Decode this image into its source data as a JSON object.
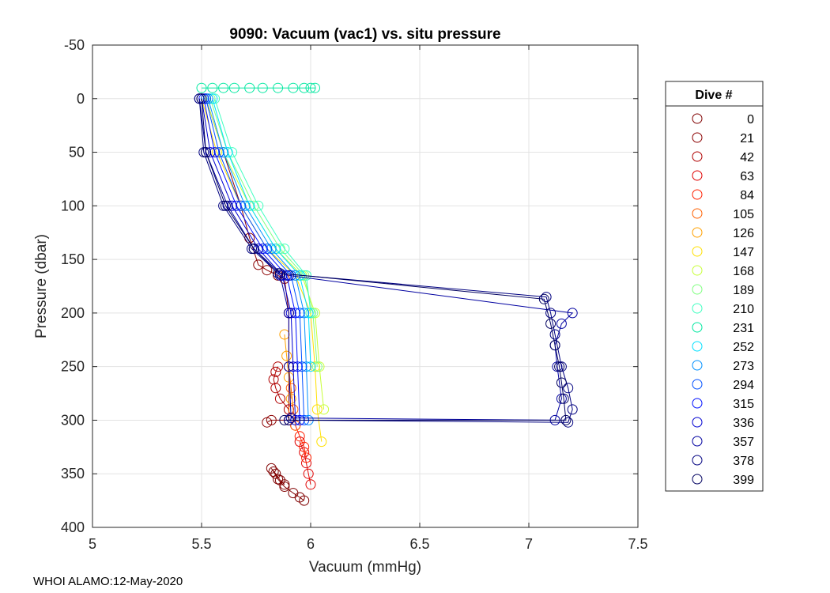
{
  "chart_data": {
    "type": "scatter",
    "title": "9090: Vacuum (vac1) vs. situ pressure",
    "xlabel": "Vacuum (mmHg)",
    "ylabel": "Pressure (dbar)",
    "xlim": [
      5,
      7.5
    ],
    "ylim": [
      -50,
      400
    ],
    "y_reversed": true,
    "grid": true,
    "xticks": [
      5,
      5.5,
      6,
      6.5,
      7,
      7.5
    ],
    "xtick_labels": [
      "5",
      "5.5",
      "6",
      "6.5",
      "7",
      "7.5"
    ],
    "yticks": [
      -50,
      0,
      50,
      100,
      150,
      200,
      250,
      300,
      350,
      400
    ],
    "ytick_labels": [
      "-50",
      "0",
      "50",
      "100",
      "150",
      "200",
      "250",
      "300",
      "350",
      "400"
    ],
    "legend_title": "Dive #",
    "legend_position": "outside-right",
    "colormap": "jet",
    "series": [
      {
        "name": "0",
        "color": "#800000",
        "x": [
          5.97,
          5.95,
          5.92,
          5.88,
          5.85,
          5.83,
          5.82,
          5.84,
          5.86,
          5.88
        ],
        "y": [
          375,
          372,
          368,
          362,
          355,
          348,
          345,
          350,
          356,
          360
        ]
      },
      {
        "name": "21",
        "color": "#8b0000",
        "x": [
          5.52,
          5.6,
          5.68,
          5.72,
          5.76,
          5.8,
          5.85,
          5.88,
          5.9,
          5.9,
          5.9,
          5.82,
          5.8
        ],
        "y": [
          0,
          50,
          100,
          130,
          155,
          160,
          165,
          168,
          200,
          250,
          300,
          300,
          302
        ]
      },
      {
        "name": "42",
        "color": "#b00000",
        "x": [
          5.85,
          5.84,
          5.83,
          5.84,
          5.86,
          5.9
        ],
        "y": [
          250,
          255,
          262,
          270,
          280,
          290
        ]
      },
      {
        "name": "63",
        "color": "#e00000",
        "x": [
          5.95,
          5.97,
          5.98,
          5.99,
          6.0
        ],
        "y": [
          320,
          330,
          340,
          350,
          360
        ]
      },
      {
        "name": "84",
        "color": "#ff2000",
        "x": [
          5.93,
          5.95,
          5.97,
          5.98
        ],
        "y": [
          305,
          315,
          325,
          335
        ]
      },
      {
        "name": "105",
        "color": "#ff6000",
        "x": [
          5.9,
          5.91,
          5.92,
          5.93
        ],
        "y": [
          250,
          270,
          290,
          305
        ]
      },
      {
        "name": "126",
        "color": "#ffa000",
        "x": [
          5.88,
          5.89,
          5.9,
          5.91
        ],
        "y": [
          220,
          240,
          260,
          280
        ]
      },
      {
        "name": "147",
        "color": "#ffe000",
        "x": [
          5.5,
          5.57,
          5.68,
          5.8,
          5.93,
          6.0,
          6.02,
          6.03,
          6.05
        ],
        "y": [
          0,
          50,
          100,
          140,
          165,
          200,
          250,
          290,
          320
        ]
      },
      {
        "name": "168",
        "color": "#c8ff38",
        "x": [
          5.52,
          5.6,
          5.72,
          5.84,
          5.96,
          6.02,
          6.04,
          6.06
        ],
        "y": [
          0,
          50,
          100,
          140,
          165,
          200,
          250,
          290
        ]
      },
      {
        "name": "189",
        "color": "#80ff80",
        "x": [
          5.54,
          5.62,
          5.74,
          5.86,
          5.97,
          6.01,
          6.03
        ],
        "y": [
          0,
          50,
          100,
          140,
          165,
          200,
          250
        ]
      },
      {
        "name": "210",
        "color": "#40ffc0",
        "x": [
          5.56,
          5.64,
          5.76,
          5.88,
          5.98,
          6.0
        ],
        "y": [
          0,
          50,
          100,
          140,
          165,
          200
        ]
      },
      {
        "name": "231",
        "color": "#00e8a0",
        "x": [
          5.5,
          5.55,
          5.6,
          5.65,
          5.72,
          5.78,
          5.85,
          5.92,
          5.97,
          6.0,
          6.02
        ],
        "y": [
          -10,
          -10,
          -10,
          -10,
          -10,
          -10,
          -10,
          -10,
          -10,
          -10,
          -10
        ]
      },
      {
        "name": "252",
        "color": "#00e0ff",
        "x": [
          5.55,
          5.62,
          5.72,
          5.84,
          5.95,
          5.99,
          6.0
        ],
        "y": [
          0,
          50,
          100,
          140,
          165,
          200,
          250
        ]
      },
      {
        "name": "273",
        "color": "#0090ff",
        "x": [
          5.53,
          5.6,
          5.7,
          5.82,
          5.93,
          5.97,
          5.98,
          5.99
        ],
        "y": [
          0,
          50,
          100,
          140,
          165,
          200,
          250,
          300
        ]
      },
      {
        "name": "294",
        "color": "#0050ff",
        "x": [
          5.52,
          5.58,
          5.68,
          5.8,
          5.91,
          5.95,
          5.96,
          5.97
        ],
        "y": [
          0,
          50,
          100,
          140,
          165,
          200,
          250,
          300
        ]
      },
      {
        "name": "315",
        "color": "#0010ff",
        "x": [
          5.51,
          5.56,
          5.66,
          5.78,
          5.89,
          5.93,
          5.94,
          5.95
        ],
        "y": [
          0,
          50,
          100,
          140,
          165,
          200,
          250,
          300
        ]
      },
      {
        "name": "336",
        "color": "#0000d0",
        "x": [
          5.5,
          5.54,
          5.64,
          5.76,
          5.87,
          5.91,
          5.92,
          5.93
        ],
        "y": [
          0,
          50,
          100,
          140,
          165,
          200,
          250,
          300
        ]
      },
      {
        "name": "357",
        "color": "#0000a0",
        "x": [
          5.49,
          5.52,
          5.62,
          5.74,
          5.86,
          5.9,
          5.9,
          5.91,
          7.12,
          7.15,
          7.13,
          7.12,
          7.15,
          7.2,
          5.9
        ],
        "y": [
          0,
          50,
          100,
          140,
          165,
          200,
          250,
          298,
          300,
          280,
          250,
          230,
          210,
          200,
          165
        ]
      },
      {
        "name": "378",
        "color": "#000080",
        "x": [
          5.49,
          5.51,
          5.6,
          5.73,
          5.85,
          7.08,
          7.1,
          7.12,
          7.15,
          7.18,
          7.2,
          7.18,
          5.9
        ],
        "y": [
          0,
          50,
          100,
          140,
          163,
          185,
          200,
          220,
          250,
          270,
          290,
          302,
          300
        ]
      },
      {
        "name": "399",
        "color": "#000060",
        "x": [
          5.5,
          5.52,
          5.61,
          5.74,
          5.86,
          7.07,
          7.1,
          7.12,
          7.14,
          7.15,
          7.16,
          7.17,
          5.88
        ],
        "y": [
          0,
          50,
          100,
          140,
          163,
          187,
          210,
          230,
          250,
          265,
          280,
          300,
          300
        ]
      }
    ]
  },
  "footer": {
    "text": "WHOI ALAMO:12-May-2020"
  }
}
